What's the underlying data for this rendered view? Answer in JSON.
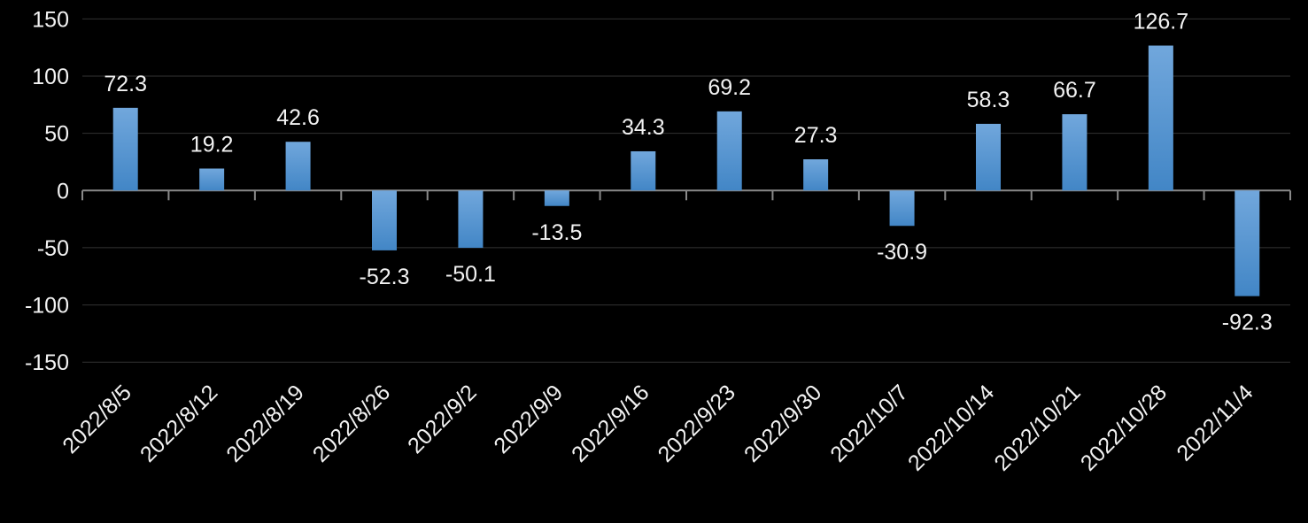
{
  "chart_data": {
    "type": "bar",
    "categories": [
      "2022/8/5",
      "2022/8/12",
      "2022/8/19",
      "2022/8/26",
      "2022/9/2",
      "2022/9/9",
      "2022/9/16",
      "2022/9/23",
      "2022/9/30",
      "2022/10/7",
      "2022/10/14",
      "2022/10/21",
      "2022/10/28",
      "2022/11/4"
    ],
    "values": [
      72.3,
      19.2,
      42.6,
      -52.3,
      -50.1,
      -13.5,
      34.3,
      69.2,
      27.3,
      -30.9,
      58.3,
      66.7,
      126.7,
      -92.3
    ],
    "value_labels": [
      "72.3",
      "19.2",
      "42.6",
      "-52.3",
      "-50.1",
      "-13.5",
      "34.3",
      "69.2",
      "27.3",
      "-30.9",
      "58.3",
      "66.7",
      "126.7",
      "-92.3"
    ],
    "title": "",
    "xlabel": "",
    "ylabel": "",
    "ylim": [
      -150,
      150
    ],
    "yticks": [
      150,
      100,
      50,
      0,
      -50,
      -100,
      -150
    ],
    "ytick_labels": [
      "150",
      "100",
      "50",
      "0",
      "-50",
      "-100",
      "-150"
    ],
    "grid": true,
    "legend_position": "none",
    "x_label_rotation_deg": -45
  },
  "colors": {
    "background": "#000000",
    "bar_gradient_top": "#71a7dc",
    "bar_gradient_bottom": "#4286c6",
    "text": "#f2f2f2",
    "gridline": "#333333",
    "axis_line": "#898989"
  }
}
